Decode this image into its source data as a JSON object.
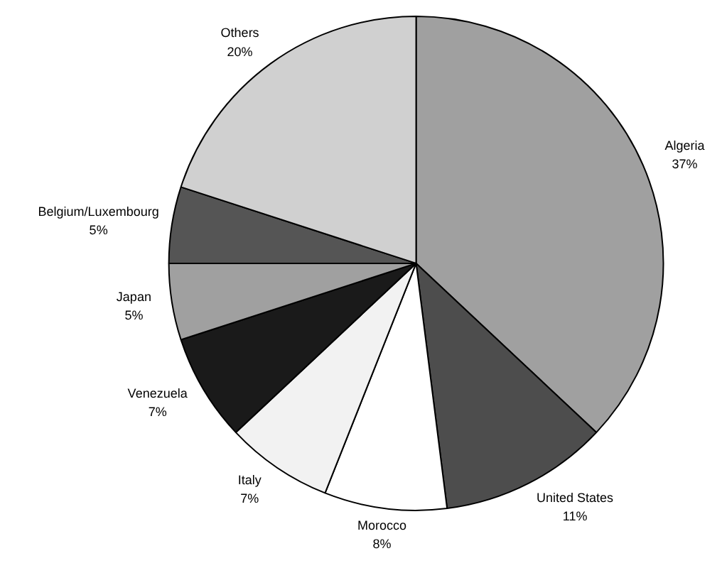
{
  "chart_data": {
    "type": "pie",
    "categories": [
      "Algeria",
      "United States",
      "Morocco",
      "Italy",
      "Venezuela",
      "Japan",
      "Belgium/Luxembourg",
      "Others"
    ],
    "values": [
      37,
      11,
      8,
      7,
      7,
      5,
      5,
      20
    ],
    "value_labels": [
      "37%",
      "11%",
      "8%",
      "7%",
      "7%",
      "5%",
      "5%",
      "20%"
    ],
    "colors": [
      "#a0a0a0",
      "#4d4d4d",
      "#ffffff",
      "#f2f2f2",
      "#1a1a1a",
      "#a0a0a0",
      "#555555",
      "#d0d0d0"
    ]
  }
}
